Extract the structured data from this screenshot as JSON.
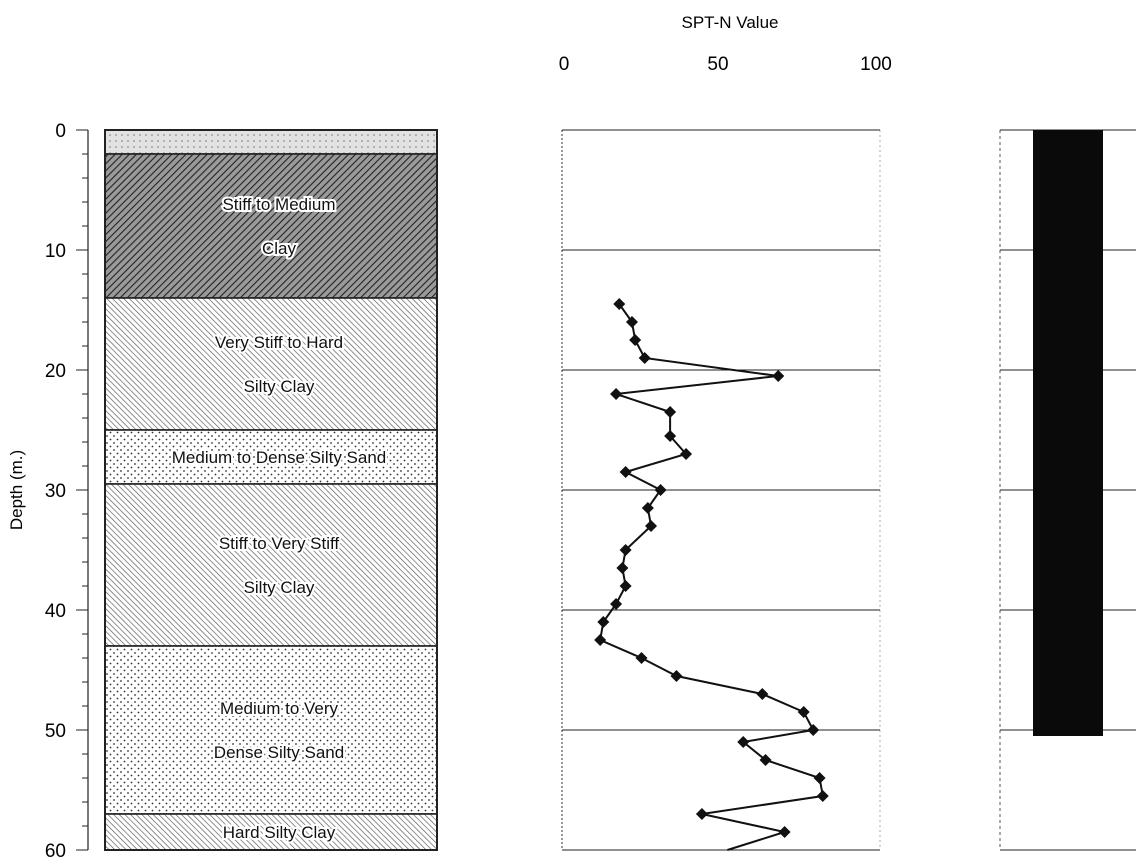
{
  "y_axis": {
    "label": "Depth (m.)",
    "ticks": [
      "0",
      "10",
      "20",
      "30",
      "40",
      "50",
      "60"
    ]
  },
  "soil_layers": [
    {
      "name": "",
      "label_lines": [],
      "top": 0,
      "bottom": 2,
      "pattern": "fill"
    },
    {
      "name": "stiff-to-medium-clay",
      "label_lines": [
        "Stiff to Medium",
        "Clay"
      ],
      "top": 2,
      "bottom": 14,
      "pattern": "hatch-dense"
    },
    {
      "name": "very-stiff-to-hard-silty-clay",
      "label_lines": [
        "Very Stiff to Hard",
        "Silty Clay"
      ],
      "top": 14,
      "bottom": 25,
      "pattern": "hatch"
    },
    {
      "name": "medium-to-dense-silty-sand",
      "label_lines": [
        "Medium to Dense Silty Sand"
      ],
      "top": 25,
      "bottom": 29.5,
      "pattern": "dots"
    },
    {
      "name": "stiff-to-very-stiff-silty-clay",
      "label_lines": [
        "Stiff to Very Stiff",
        "Silty Clay"
      ],
      "top": 29.5,
      "bottom": 43,
      "pattern": "hatch"
    },
    {
      "name": "medium-to-very-dense-silty-sand",
      "label_lines": [
        "Medium  to Very",
        "Dense Silty Sand"
      ],
      "top": 43,
      "bottom": 57,
      "pattern": "dots"
    },
    {
      "name": "hard-silty-clay",
      "label_lines": [
        "Hard Silty Clay"
      ],
      "top": 57,
      "bottom": 60,
      "pattern": "hatch"
    }
  ],
  "chart_data": {
    "type": "line",
    "title": "SPT-N Value",
    "xlabel": "SPT-N Value",
    "ylabel": "Depth (m.)",
    "x_ticks": [
      "0",
      "50",
      "100"
    ],
    "xlim": [
      0,
      100
    ],
    "ylim": [
      0,
      60
    ],
    "y_inverted": true,
    "grid": "horizontal lines every 10 m",
    "series": [
      {
        "marker": "diamond",
        "points": [
          {
            "n": 18,
            "depth": 14.5
          },
          {
            "n": 22,
            "depth": 16
          },
          {
            "n": 23,
            "depth": 17.5
          },
          {
            "n": 26,
            "depth": 19
          },
          {
            "n": 68,
            "depth": 20.5
          },
          {
            "n": 17,
            "depth": 22
          },
          {
            "n": 34,
            "depth": 23.5
          },
          {
            "n": 34,
            "depth": 25.5
          },
          {
            "n": 39,
            "depth": 27
          },
          {
            "n": 20,
            "depth": 28.5
          },
          {
            "n": 31,
            "depth": 30
          },
          {
            "n": 27,
            "depth": 31.5
          },
          {
            "n": 28,
            "depth": 33
          },
          {
            "n": 20,
            "depth": 35
          },
          {
            "n": 19,
            "depth": 36.5
          },
          {
            "n": 20,
            "depth": 38
          },
          {
            "n": 17,
            "depth": 39.5
          },
          {
            "n": 13,
            "depth": 41
          },
          {
            "n": 12,
            "depth": 42.5
          },
          {
            "n": 25,
            "depth": 44
          },
          {
            "n": 36,
            "depth": 45.5
          },
          {
            "n": 63,
            "depth": 47
          },
          {
            "n": 76,
            "depth": 48.5
          },
          {
            "n": 79,
            "depth": 50
          },
          {
            "n": 57,
            "depth": 51
          },
          {
            "n": 64,
            "depth": 52.5
          },
          {
            "n": 81,
            "depth": 54
          },
          {
            "n": 82,
            "depth": 55.5
          },
          {
            "n": 44,
            "depth": 57
          },
          {
            "n": 70,
            "depth": 58.5
          },
          {
            "n": 52,
            "depth": 60
          }
        ]
      }
    ]
  },
  "right_column": {
    "bar_top": 0,
    "bar_bottom": 50.5
  }
}
